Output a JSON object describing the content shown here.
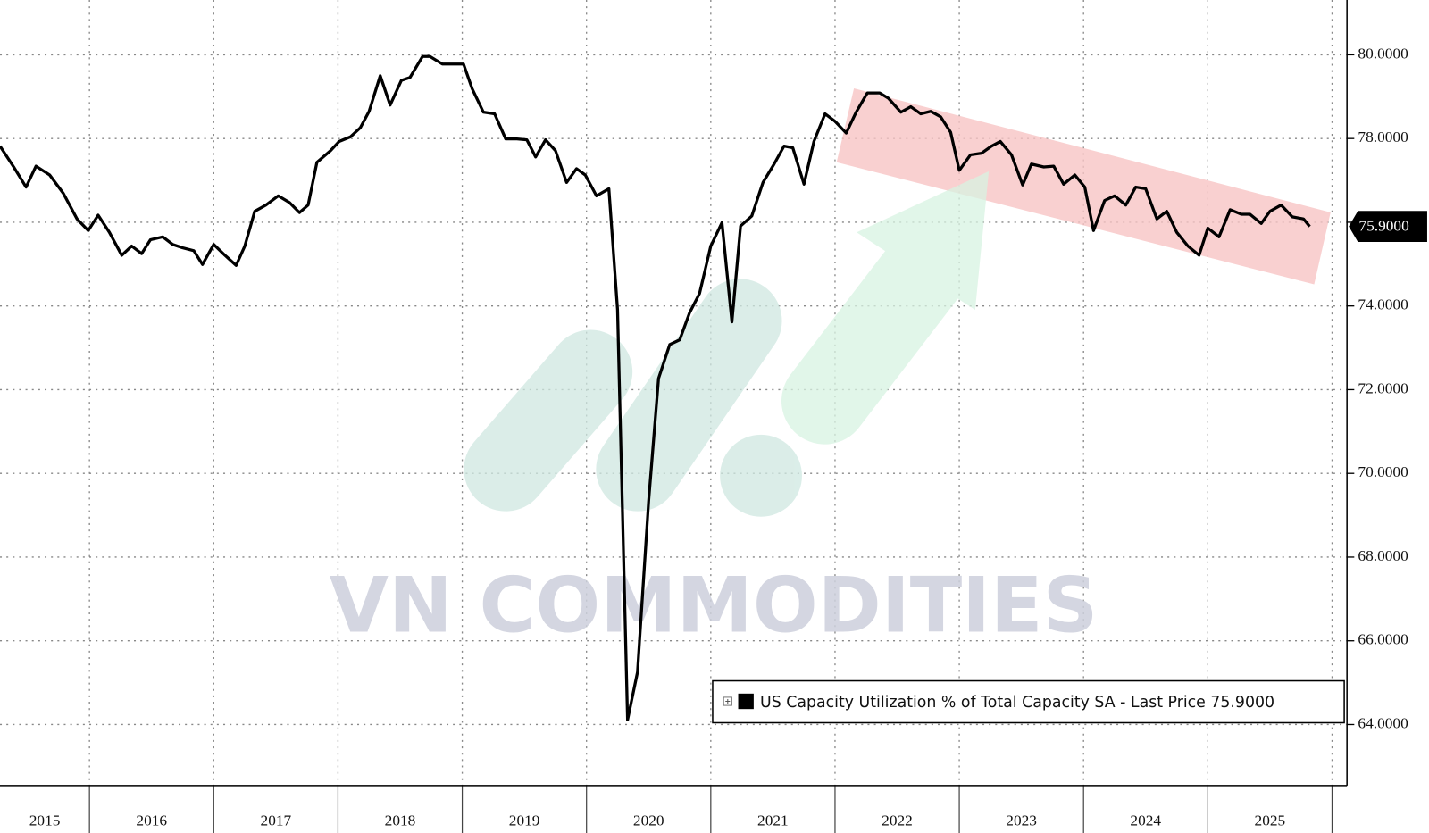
{
  "chart_data": {
    "type": "line",
    "watermark": "VN COMMODITIES",
    "xlim": [
      2015.28,
      2026.12
    ],
    "ylim": [
      62.54,
      81.31
    ],
    "xticks": [
      2016,
      2017,
      2018,
      2019,
      2020,
      2021,
      2022,
      2023,
      2024,
      2025,
      2026
    ],
    "xtick_labels": [
      {
        "value": 2015.64,
        "label": "2015"
      },
      {
        "value": 2016.5,
        "label": "2016"
      },
      {
        "value": 2017.5,
        "label": "2017"
      },
      {
        "value": 2018.5,
        "label": "2018"
      },
      {
        "value": 2019.5,
        "label": "2019"
      },
      {
        "value": 2020.5,
        "label": "2020"
      },
      {
        "value": 2021.5,
        "label": "2021"
      },
      {
        "value": 2022.5,
        "label": "2022"
      },
      {
        "value": 2023.5,
        "label": "2023"
      },
      {
        "value": 2024.5,
        "label": "2024"
      },
      {
        "value": 2025.5,
        "label": "2025"
      }
    ],
    "yticks": [
      {
        "value": 64,
        "label": "64.0000"
      },
      {
        "value": 66,
        "label": "66.0000"
      },
      {
        "value": 68,
        "label": "68.0000"
      },
      {
        "value": 70,
        "label": "70.0000"
      },
      {
        "value": 72,
        "label": "72.0000"
      },
      {
        "value": 74,
        "label": "74.0000"
      },
      {
        "value": 76,
        "label": "76.0000"
      },
      {
        "value": 78,
        "label": "78.0000"
      },
      {
        "value": 80,
        "label": "80.0000"
      }
    ],
    "grid": true,
    "last_price": {
      "value": 75.9,
      "label": "75.9000"
    },
    "series": [
      {
        "name": "US Capacity Utilization % of Total Capacity SA - Last Price 75.9000",
        "color": "#000000",
        "x": [
          2015.28,
          2015.39,
          2015.49,
          2015.57,
          2015.68,
          2015.79,
          2015.9,
          2015.99,
          2016.07,
          2016.16,
          2016.26,
          2016.34,
          2016.42,
          2016.49,
          2016.59,
          2016.67,
          2016.75,
          2016.84,
          2016.91,
          2017.0,
          2017.09,
          2017.18,
          2017.25,
          2017.33,
          2017.42,
          2017.52,
          2017.61,
          2017.69,
          2017.76,
          2017.83,
          2017.94,
          2018.01,
          2018.1,
          2018.18,
          2018.25,
          2018.34,
          2018.42,
          2018.51,
          2018.58,
          2018.68,
          2018.74,
          2018.84,
          2018.93,
          2019.01,
          2019.08,
          2019.17,
          2019.26,
          2019.35,
          2019.44,
          2019.52,
          2019.59,
          2019.67,
          2019.75,
          2019.84,
          2019.92,
          2019.99,
          2020.08,
          2020.18,
          2020.25,
          2020.33,
          2020.41,
          2020.5,
          2020.58,
          2020.67,
          2020.75,
          2020.83,
          2020.91,
          2021.0,
          2021.09,
          2021.17,
          2021.24,
          2021.33,
          2021.42,
          2021.51,
          2021.59,
          2021.66,
          2021.75,
          2021.83,
          2021.92,
          2022.0,
          2022.09,
          2022.17,
          2022.26,
          2022.36,
          2022.43,
          2022.53,
          2022.61,
          2022.69,
          2022.77,
          2022.85,
          2022.93,
          2023.0,
          2023.09,
          2023.18,
          2023.26,
          2023.33,
          2023.42,
          2023.51,
          2023.58,
          2023.68,
          2023.76,
          2023.84,
          2023.93,
          2024.01,
          2024.08,
          2024.17,
          2024.25,
          2024.34,
          2024.42,
          2024.5,
          2024.59,
          2024.67,
          2024.75,
          2024.84,
          2024.93,
          2025.0,
          2025.09,
          2025.18,
          2025.27,
          2025.34,
          2025.43,
          2025.5,
          2025.59,
          2025.68,
          2025.77,
          2025.82
        ],
        "values": [
          77.82,
          77.32,
          76.84,
          77.34,
          77.13,
          76.69,
          76.08,
          75.8,
          76.17,
          75.76,
          75.21,
          75.43,
          75.25,
          75.58,
          75.65,
          75.47,
          75.39,
          75.32,
          74.99,
          75.47,
          75.21,
          74.97,
          75.43,
          76.26,
          76.41,
          76.63,
          76.47,
          76.23,
          76.41,
          77.43,
          77.71,
          77.93,
          78.04,
          78.26,
          78.65,
          79.5,
          78.8,
          79.39,
          79.46,
          79.96,
          79.96,
          79.78,
          79.78,
          79.78,
          79.19,
          78.63,
          78.59,
          77.99,
          77.99,
          77.97,
          77.56,
          77.97,
          77.71,
          76.95,
          77.28,
          77.13,
          76.63,
          76.8,
          73.91,
          64.11,
          65.25,
          69.33,
          72.27,
          73.08,
          73.19,
          73.84,
          74.3,
          75.43,
          75.99,
          73.62,
          75.91,
          76.15,
          76.95,
          77.39,
          77.82,
          77.78,
          76.91,
          77.93,
          78.59,
          78.41,
          78.13,
          78.63,
          79.09,
          79.09,
          78.96,
          78.63,
          78.76,
          78.59,
          78.65,
          78.52,
          78.15,
          77.24,
          77.61,
          77.65,
          77.82,
          77.93,
          77.61,
          76.89,
          77.39,
          77.32,
          77.34,
          76.91,
          77.13,
          76.84,
          75.8,
          76.52,
          76.63,
          76.41,
          76.84,
          76.8,
          76.08,
          76.26,
          75.76,
          75.43,
          75.21,
          75.86,
          75.65,
          76.3,
          76.19,
          76.19,
          75.97,
          76.26,
          76.41,
          76.13,
          76.08,
          75.9
        ]
      }
    ]
  }
}
